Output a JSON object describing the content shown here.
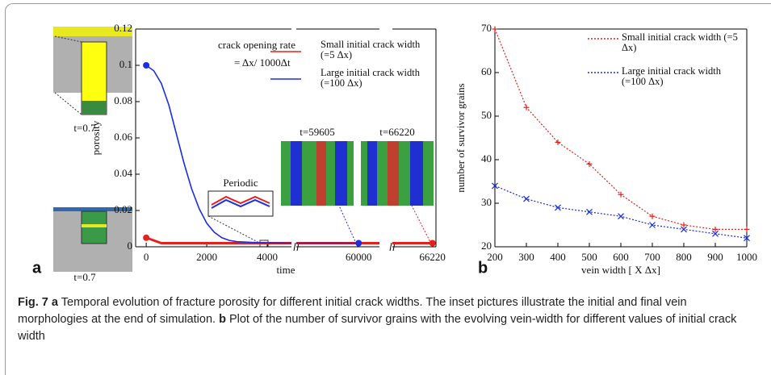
{
  "chart_data": [
    {
      "type": "line",
      "panel_label": "a",
      "xlabel": "time",
      "ylabel": "porosity",
      "annotations": [
        "crack opening rate",
        "= Δx/ 1000Δt",
        "Periodic",
        "t=59605",
        "t=66220",
        "t=0.7",
        "t=0.7"
      ],
      "x_segments": [
        {
          "xlim": [
            -350,
            4800
          ],
          "xticks": [
            0,
            2000,
            4000
          ]
        },
        {
          "xlim": [
            57900,
            60700
          ],
          "xticks": [
            60000
          ]
        },
        {
          "xlim": [
            65300,
            66300
          ],
          "xticks": [
            66220
          ]
        }
      ],
      "ylim": [
        0,
        0.12
      ],
      "yticks": [
        0,
        0.02,
        0.04,
        0.06,
        0.08,
        0.1,
        0.12
      ],
      "end_markers": true,
      "series": [
        {
          "name": "Small initial crack width (=5 Δx)",
          "color": "#e8201c",
          "x": [
            0,
            500,
            1000,
            2000,
            3000,
            4000,
            4800,
            null,
            57900,
            60700,
            null,
            65300,
            66220
          ],
          "values": [
            0.005,
            0.002,
            0.002,
            0.002,
            0.002,
            0.002,
            0.002,
            null,
            0.002,
            0.002,
            null,
            0.002,
            0.002
          ]
        },
        {
          "name": "Large initial crack width (=100 Δx)",
          "color": "#1b2ee0",
          "x": [
            0,
            250,
            500,
            750,
            1000,
            1250,
            1500,
            1750,
            2000,
            2250,
            2500,
            2750,
            3000,
            3500,
            4000,
            4500,
            4800,
            null,
            57900,
            60000
          ],
          "values": [
            0.1,
            0.097,
            0.09,
            0.078,
            0.062,
            0.046,
            0.032,
            0.021,
            0.013,
            0.008,
            0.005,
            0.0035,
            0.0028,
            0.0024,
            0.0022,
            0.0021,
            0.002,
            null,
            0.002,
            0.002
          ]
        }
      ]
    },
    {
      "type": "line",
      "panel_label": "b",
      "xlabel": "vein width [ X Δx]",
      "ylabel": "number of survivor grains",
      "xlim": [
        200,
        1000
      ],
      "xticks": [
        200,
        300,
        400,
        500,
        600,
        700,
        800,
        900,
        1000
      ],
      "ylim": [
        20,
        70
      ],
      "yticks": [
        20,
        30,
        40,
        50,
        60,
        70
      ],
      "series": [
        {
          "name": "Small initial crack width (=5 Δx)",
          "color": "#e8201c",
          "marker": "+",
          "x": [
            200,
            300,
            400,
            500,
            600,
            700,
            800,
            900,
            1000
          ],
          "values": [
            70,
            52,
            44,
            39,
            32,
            27,
            25,
            24,
            24
          ]
        },
        {
          "name": "Large initial crack width (=100 Δx)",
          "color": "#1b2ee0",
          "marker": "x",
          "x": [
            200,
            300,
            400,
            500,
            600,
            700,
            800,
            900,
            1000
          ],
          "values": [
            34,
            31,
            29,
            28,
            27,
            25,
            24,
            23,
            22
          ]
        }
      ]
    }
  ],
  "caption": {
    "label": "Fig. 7",
    "parts": [
      {
        "label": "a",
        "text": "Temporal evolution of fracture porosity for different initial crack widths. The inset pictures illustrate the initial and final vein morphologies at the end of simulation."
      },
      {
        "label": "b",
        "text": "Plot of the number of survivor grains with the evolving vein-width for different values of initial crack width"
      }
    ]
  }
}
